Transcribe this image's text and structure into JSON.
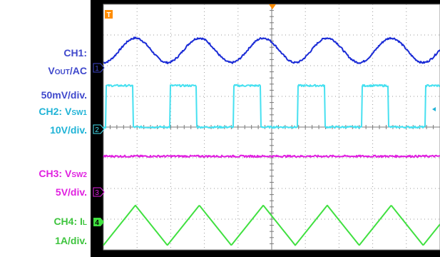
{
  "labels": {
    "ch1": {
      "name": "CH1:",
      "signal_main": "V",
      "signal_sub": "OUT",
      "signal_tail": "/AC",
      "scale": "50mV/div.",
      "color": "#3f48cc"
    },
    "ch2": {
      "name": "CH2: ",
      "signal_main": "V",
      "signal_sub": "SW1",
      "scale": "10V/div.",
      "color": "#1fb3d6"
    },
    "ch3": {
      "name": "CH3: ",
      "signal_main": "V",
      "signal_sub": "SW2",
      "scale": "5V/div.",
      "color": "#e020e0"
    },
    "ch4": {
      "name": "CH4: ",
      "signal_main": "I",
      "signal_sub": "L",
      "scale": "1A/div.",
      "color": "#3ec43e"
    }
  },
  "markers": {
    "ch1": "1",
    "ch2": "2",
    "ch3": "3",
    "ch4": "4",
    "trigger": "T"
  },
  "chart_data": {
    "type": "line",
    "grid": true,
    "x_divisions": 10,
    "y_divisions": 8,
    "period_divisions": 1.9,
    "series": [
      {
        "channel": "CH1",
        "shape": "sine",
        "color": "#1a2bd6",
        "offset_div": 6.5,
        "amplitude_div": 0.4,
        "noise": true
      },
      {
        "channel": "CH2",
        "shape": "square",
        "color": "#46e0f0",
        "offset_div": 4.0,
        "low_div": 0,
        "high_div": 1.35,
        "duty": 0.42,
        "noise": true
      },
      {
        "channel": "CH3",
        "shape": "flat",
        "color": "#e020e0",
        "offset_div": 3.05,
        "noise": true
      },
      {
        "channel": "CH4",
        "shape": "triangle",
        "color": "#40e040",
        "offset_div": 0.8,
        "amplitude_div": 0.65
      }
    ]
  }
}
